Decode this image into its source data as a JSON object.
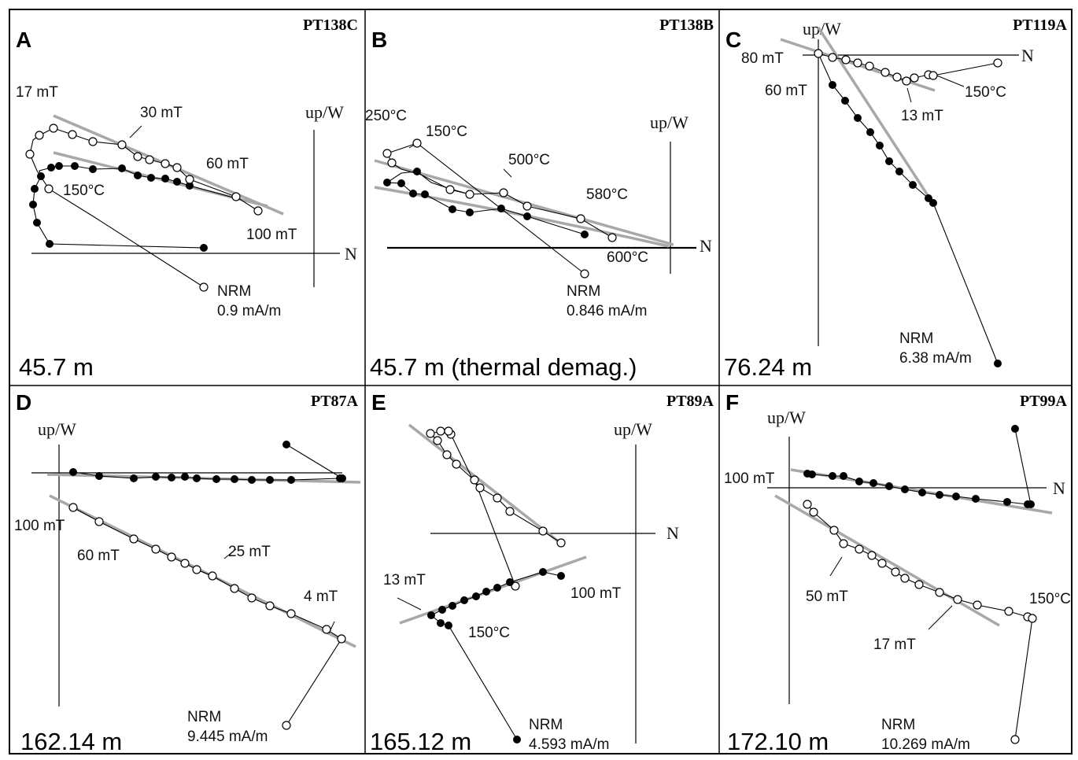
{
  "figure": {
    "panels": [
      {
        "letter": "A",
        "sample": "PT138C",
        "depth": "45.7 m",
        "axis_up": "up/W",
        "axis_n": "N",
        "steps": [
          "17 mT",
          "30 mT",
          "60 mT",
          "100 mT",
          "150°C"
        ],
        "nrm": "NRM",
        "nrm_value": "0.9 mA/m"
      },
      {
        "letter": "B",
        "sample": "PT138B",
        "depth": "45.7 m (thermal demag.)",
        "axis_up": "up/W",
        "axis_n": "N",
        "steps": [
          "250°C",
          "150°C",
          "500°C",
          "580°C",
          "600°C"
        ],
        "nrm": "NRM",
        "nrm_value": "0.846 mA/m"
      },
      {
        "letter": "C",
        "sample": "PT119A",
        "depth": "76.24 m",
        "axis_up": "up/W",
        "axis_n": "N",
        "steps": [
          "80 mT",
          "60 mT",
          "13 mT",
          "150°C"
        ],
        "nrm": "NRM",
        "nrm_value": "6.38 mA/m"
      },
      {
        "letter": "D",
        "sample": "PT87A",
        "depth": "162.14 m",
        "axis_up": "up/W",
        "axis_n": "",
        "steps": [
          "100 mT",
          "60 mT",
          "25 mT",
          "4 mT"
        ],
        "nrm": "NRM",
        "nrm_value": "9.445 mA/m"
      },
      {
        "letter": "E",
        "sample": "PT89A",
        "depth": "165.12 m",
        "axis_up": "up/W",
        "axis_n": "N",
        "steps": [
          "13 mT",
          "100 mT",
          "150°C"
        ],
        "nrm": "NRM",
        "nrm_value": "4.593 mA/m"
      },
      {
        "letter": "F",
        "sample": "PT99A",
        "depth": "172.10 m",
        "axis_up": "up/W",
        "axis_n": "N",
        "steps": [
          "100 mT",
          "50 mT",
          "17 mT",
          "150°C"
        ],
        "nrm": "NRM",
        "nrm_value": "10.269 mA/m"
      }
    ]
  },
  "colors": {
    "fit_line": "#a8a8a8",
    "data_line": "#000000",
    "frame": "#000000"
  }
}
